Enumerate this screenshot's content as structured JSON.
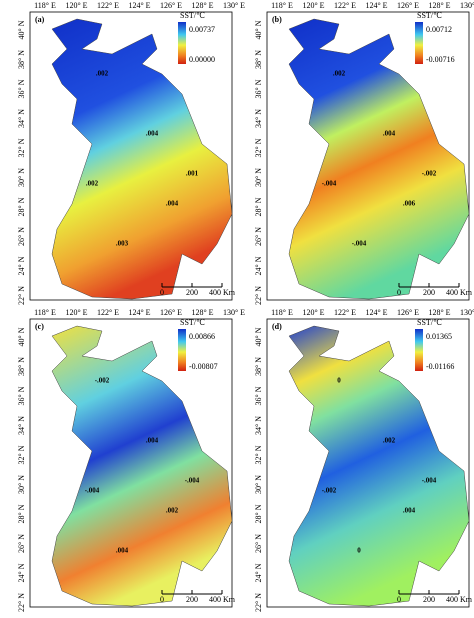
{
  "lon_ticks": [
    "118° E",
    "120° E",
    "122° E",
    "124° E",
    "126° E",
    "128° E",
    "130° E"
  ],
  "lat_ticks": [
    "40° N",
    "38° N",
    "36° N",
    "34° N",
    "32° N",
    "30° N",
    "28° N",
    "26° N",
    "24° N",
    "22° N"
  ],
  "scale_labels": [
    "0",
    "200",
    "400 Km"
  ],
  "panels": [
    {
      "label": "(a)",
      "legend_title": "SST/℃",
      "max": "0.00737",
      "min": "0.00000",
      "contour_labels": [
        ".002",
        ".004",
        ".002",
        ".004",
        ".003",
        ".001"
      ]
    },
    {
      "label": "(b)",
      "legend_title": "SST/℃",
      "max": "0.00712",
      "min": "-0.00716",
      "contour_labels": [
        ".002",
        ".004",
        "-.004",
        ".006",
        "-.004",
        "-.002"
      ]
    },
    {
      "label": "(c)",
      "legend_title": "SST/℃",
      "max": "0.00866",
      "min": "-0.00807",
      "contour_labels": [
        "-.002",
        ".004",
        "-.004",
        ".002",
        ".004",
        "-.004"
      ]
    },
    {
      "label": "(d)",
      "legend_title": "SST/℃",
      "max": "0.01365",
      "min": "-0.01166",
      "contour_labels": [
        "0",
        ".002",
        "-.002",
        ".004",
        "0",
        "-.004"
      ]
    }
  ]
}
